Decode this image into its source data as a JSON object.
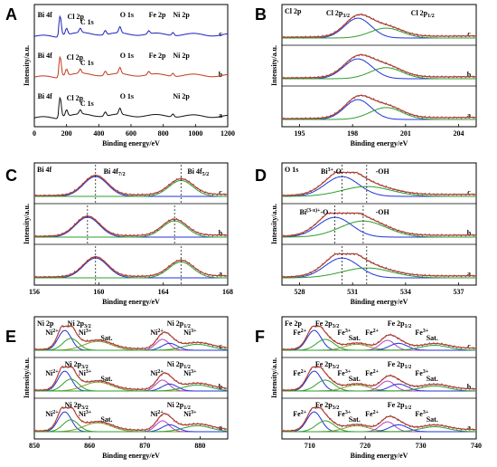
{
  "colors": {
    "raw": "#555555",
    "fit": "#c0392b",
    "blue": "#1f35d6",
    "green": "#2e9e2e",
    "purple": "#b040c8",
    "olive": "#8a9a2e",
    "surveyA": "#2020c0",
    "surveyB": "#c03a1a",
    "surveyC": "#111111"
  },
  "chart_data": [
    {
      "panel": "A",
      "type": "line",
      "xlabel": "Binding energy/eV",
      "ylabel": "Intensity/a.u.",
      "xlim": [
        0,
        1200
      ],
      "xticks": [
        0,
        200,
        400,
        600,
        800,
        1000,
        1200
      ],
      "series": [
        {
          "name": "c",
          "peaks": [
            [
              160,
              9
            ],
            [
              200,
              3
            ],
            [
              285,
              2
            ],
            [
              440,
              2
            ],
            [
              531,
              3
            ],
            [
              710,
              1.5
            ],
            [
              860,
              1.5
            ]
          ],
          "labels": [
            {
              "text": "Bi 4f",
              "x": 20
            },
            {
              "text": "Cl 2p",
              "x": 205
            },
            {
              "text": "C 1s",
              "x": 285
            },
            {
              "text": "O 1s",
              "x": 531
            },
            {
              "text": "Fe 2p",
              "x": 710
            },
            {
              "text": "Ni 2p",
              "x": 860
            }
          ]
        },
        {
          "name": "b",
          "peaks": [
            [
              160,
              9
            ],
            [
              200,
              3
            ],
            [
              285,
              2
            ],
            [
              440,
              2
            ],
            [
              531,
              3
            ],
            [
              710,
              1.5
            ],
            [
              860,
              1.5
            ]
          ],
          "labels": [
            {
              "text": "Bi 4f",
              "x": 20
            },
            {
              "text": "Cl 2p",
              "x": 200
            },
            {
              "text": "C 1s",
              "x": 285
            },
            {
              "text": "O 1s",
              "x": 531
            },
            {
              "text": "Fe 2p",
              "x": 710
            },
            {
              "text": "Ni 2p",
              "x": 860
            }
          ]
        },
        {
          "name": "a",
          "peaks": [
            [
              160,
              9
            ],
            [
              200,
              3
            ],
            [
              285,
              2
            ],
            [
              440,
              2
            ],
            [
              531,
              3
            ],
            [
              860,
              1.5
            ]
          ],
          "labels": [
            {
              "text": "Bi 4f",
              "x": 20
            },
            {
              "text": "Cl 2p",
              "x": 200
            },
            {
              "text": "C 1s",
              "x": 285
            },
            {
              "text": "O 1s",
              "x": 531
            },
            {
              "text": "Ni 2p",
              "x": 860
            }
          ]
        }
      ]
    },
    {
      "panel": "B",
      "type": "line",
      "title": "Cl 2p",
      "xlabel": "Binding energy/eV",
      "ylabel": "Intensity/a.u.",
      "xlim": [
        194,
        205
      ],
      "xticks": [
        195,
        198,
        201,
        204
      ],
      "series": [
        {
          "name": "c",
          "components": [
            [
              198.3,
              0.75,
              1.0
            ],
            [
              199.9,
              0.9,
              0.5
            ]
          ],
          "labels": [
            {
              "text": "Cl 2p3/2",
              "x": 196.5
            },
            {
              "text": "Cl 2p1/2",
              "x": 201.3
            }
          ]
        },
        {
          "name": "b",
          "components": [
            [
              198.3,
              0.8,
              0.25
            ],
            [
              199.9,
              0.9,
              0.14
            ]
          ]
        },
        {
          "name": "a",
          "components": [
            [
              198.3,
              0.75,
              1.0
            ],
            [
              199.9,
              0.9,
              0.6
            ]
          ]
        }
      ]
    },
    {
      "panel": "C",
      "type": "line",
      "title": "Bi 4f",
      "xlabel": "Binding energy/eV",
      "ylabel": "Intensity/a.u.",
      "xlim": [
        156,
        168
      ],
      "xticks": [
        156,
        160,
        164,
        168
      ],
      "series": [
        {
          "name": "c",
          "components": [
            [
              159.8,
              0.75,
              1.0
            ],
            [
              165.1,
              0.75,
              0.8
            ]
          ],
          "labels": [
            {
              "text": "Bi 4f7/2",
              "x": 160.3
            },
            {
              "text": "Bi 4f5/2",
              "x": 165.5
            }
          ]
        },
        {
          "name": "b",
          "components": [
            [
              159.3,
              0.75,
              1.0
            ],
            [
              164.7,
              0.75,
              0.82
            ]
          ]
        },
        {
          "name": "a",
          "components": [
            [
              159.8,
              0.75,
              1.0
            ],
            [
              165.1,
              0.75,
              0.8
            ]
          ]
        }
      ]
    },
    {
      "panel": "D",
      "type": "line",
      "title": "O 1s",
      "xlabel": "Binding energy/eV",
      "ylabel": "Intensity/a.u.",
      "xlim": [
        527,
        538
      ],
      "xticks": [
        528,
        531,
        534,
        537
      ],
      "series": [
        {
          "name": "c",
          "components": [
            [
              530.4,
              0.95,
              1.0
            ],
            [
              531.8,
              1.4,
              0.5
            ]
          ],
          "labels": [
            {
              "text": "Bi3+-O",
              "x": 529.2
            },
            {
              "text": "-OH",
              "x": 532.3
            }
          ]
        },
        {
          "name": "b",
          "components": [
            [
              530.0,
              0.95,
              0.8
            ],
            [
              531.6,
              1.3,
              0.65
            ]
          ],
          "labels": [
            {
              "text": "Bi(3-x)+-O",
              "x": 528.0
            },
            {
              "text": "-OH",
              "x": 532.3
            }
          ]
        },
        {
          "name": "a",
          "components": [
            [
              530.4,
              0.95,
              1.0
            ],
            [
              531.8,
              1.4,
              0.5
            ]
          ]
        }
      ]
    },
    {
      "panel": "E",
      "type": "line",
      "title": "Ni 2p",
      "xlabel": "Binding energy/eV",
      "ylabel": "Intensity/a.u.",
      "xlim": [
        850,
        885
      ],
      "xticks": [
        850,
        860,
        870,
        880
      ],
      "series": [
        {
          "name": "c",
          "components": [
            [
              855.5,
              1.2,
              1.0
            ],
            [
              856.6,
              1.4,
              0.6
            ],
            [
              861.5,
              2.5,
              0.45
            ],
            [
              873.2,
              1.2,
              0.55
            ],
            [
              874.5,
              1.4,
              0.35
            ],
            [
              879.5,
              2.5,
              0.3
            ]
          ],
          "labels": [
            {
              "text": "Ni 2p",
              "x": 851
            },
            {
              "text": "Ni2+",
              "x": 852
            },
            {
              "text": "Ni 2p3/2",
              "x": 856
            },
            {
              "text": "Ni3+",
              "x": 858
            },
            {
              "text": "Sat.",
              "x": 862
            },
            {
              "text": "Ni 2p1/2",
              "x": 874
            },
            {
              "text": "Ni2+",
              "x": 871
            },
            {
              "text": "Ni3+",
              "x": 877
            }
          ]
        },
        {
          "name": "b",
          "components": [
            [
              855.5,
              1.2,
              1.0
            ],
            [
              856.6,
              1.4,
              0.6
            ],
            [
              861.5,
              2.5,
              0.45
            ],
            [
              873.2,
              1.2,
              0.55
            ],
            [
              874.5,
              1.4,
              0.35
            ],
            [
              879.5,
              2.5,
              0.3
            ]
          ],
          "labels": [
            {
              "text": "Ni 2p3/2",
              "x": 855.5
            },
            {
              "text": "Ni2+",
              "x": 852
            },
            {
              "text": "Ni3+",
              "x": 858
            },
            {
              "text": "Sat.",
              "x": 862
            },
            {
              "text": "Ni 2p1/2",
              "x": 874
            },
            {
              "text": "Ni2+",
              "x": 871
            },
            {
              "text": "Ni3+",
              "x": 877
            }
          ]
        },
        {
          "name": "a",
          "components": [
            [
              855.5,
              1.2,
              1.0
            ],
            [
              856.6,
              1.4,
              0.6
            ],
            [
              861.5,
              2.5,
              0.45
            ],
            [
              873.2,
              1.2,
              0.55
            ],
            [
              874.5,
              1.4,
              0.35
            ],
            [
              879.5,
              2.5,
              0.3
            ]
          ],
          "labels": [
            {
              "text": "Ni 2p3/2",
              "x": 855.5
            },
            {
              "text": "Ni2+",
              "x": 852
            },
            {
              "text": "Ni3+",
              "x": 858
            },
            {
              "text": "Sat.",
              "x": 862
            },
            {
              "text": "Ni 2p1/2",
              "x": 874
            },
            {
              "text": "Ni2+",
              "x": 871
            },
            {
              "text": "Ni3+",
              "x": 877
            }
          ]
        }
      ]
    },
    {
      "panel": "F",
      "type": "line",
      "title": "Fe 2p",
      "xlabel": "Binding energy/eV",
      "ylabel": "Intensity/a.u.",
      "xlim": [
        705,
        740
      ],
      "xticks": [
        710,
        720,
        730,
        740
      ],
      "series": [
        {
          "name": "c",
          "components": [
            [
              710.8,
              1.3,
              1.0
            ],
            [
              712.8,
              1.6,
              0.55
            ],
            [
              718.5,
              2.2,
              0.3
            ],
            [
              724.0,
              1.3,
              0.5
            ],
            [
              726.0,
              1.6,
              0.35
            ],
            [
              732.5,
              2.5,
              0.25
            ]
          ],
          "labels": [
            {
              "text": "Fe 2p",
              "x": 706
            },
            {
              "text": "Fe2+",
              "x": 707
            },
            {
              "text": "Fe 2p3/2",
              "x": 711
            },
            {
              "text": "Fe3+",
              "x": 715
            },
            {
              "text": "Sat.",
              "x": 717
            },
            {
              "text": "Fe2+",
              "x": 720
            },
            {
              "text": "Fe 2p1/2",
              "x": 724
            },
            {
              "text": "Fe3+",
              "x": 729
            },
            {
              "text": "Sat.",
              "x": 731
            }
          ]
        },
        {
          "name": "b",
          "components": [
            [
              710.8,
              1.3,
              1.0
            ],
            [
              712.8,
              1.6,
              0.55
            ],
            [
              718.5,
              2.2,
              0.3
            ],
            [
              724.0,
              1.3,
              0.5
            ],
            [
              726.0,
              1.6,
              0.35
            ],
            [
              732.5,
              2.5,
              0.25
            ]
          ],
          "labels": [
            {
              "text": "Fe2+",
              "x": 707
            },
            {
              "text": "Fe 2p3/2",
              "x": 711
            },
            {
              "text": "Fe3+",
              "x": 715
            },
            {
              "text": "Sat.",
              "x": 717
            },
            {
              "text": "Fe2+",
              "x": 720
            },
            {
              "text": "Fe 2p1/2",
              "x": 724
            },
            {
              "text": "Fe3+",
              "x": 729
            },
            {
              "text": "Sat.",
              "x": 731
            }
          ]
        },
        {
          "name": "a",
          "components": [
            [
              710.8,
              1.3,
              1.0
            ],
            [
              712.8,
              1.6,
              0.55
            ],
            [
              718.5,
              2.2,
              0.3
            ],
            [
              724.0,
              1.3,
              0.5
            ],
            [
              726.0,
              1.6,
              0.35
            ],
            [
              732.5,
              2.5,
              0.25
            ]
          ],
          "labels": [
            {
              "text": "Fe2+",
              "x": 707
            },
            {
              "text": "Fe 2p3/2",
              "x": 711
            },
            {
              "text": "Fe3+",
              "x": 715
            },
            {
              "text": "Sat.",
              "x": 717
            },
            {
              "text": "Fe2+",
              "x": 720
            },
            {
              "text": "Fe 2p1/2",
              "x": 724
            },
            {
              "text": "Fe3+",
              "x": 729
            },
            {
              "text": "Sat.",
              "x": 731
            }
          ]
        }
      ]
    }
  ]
}
